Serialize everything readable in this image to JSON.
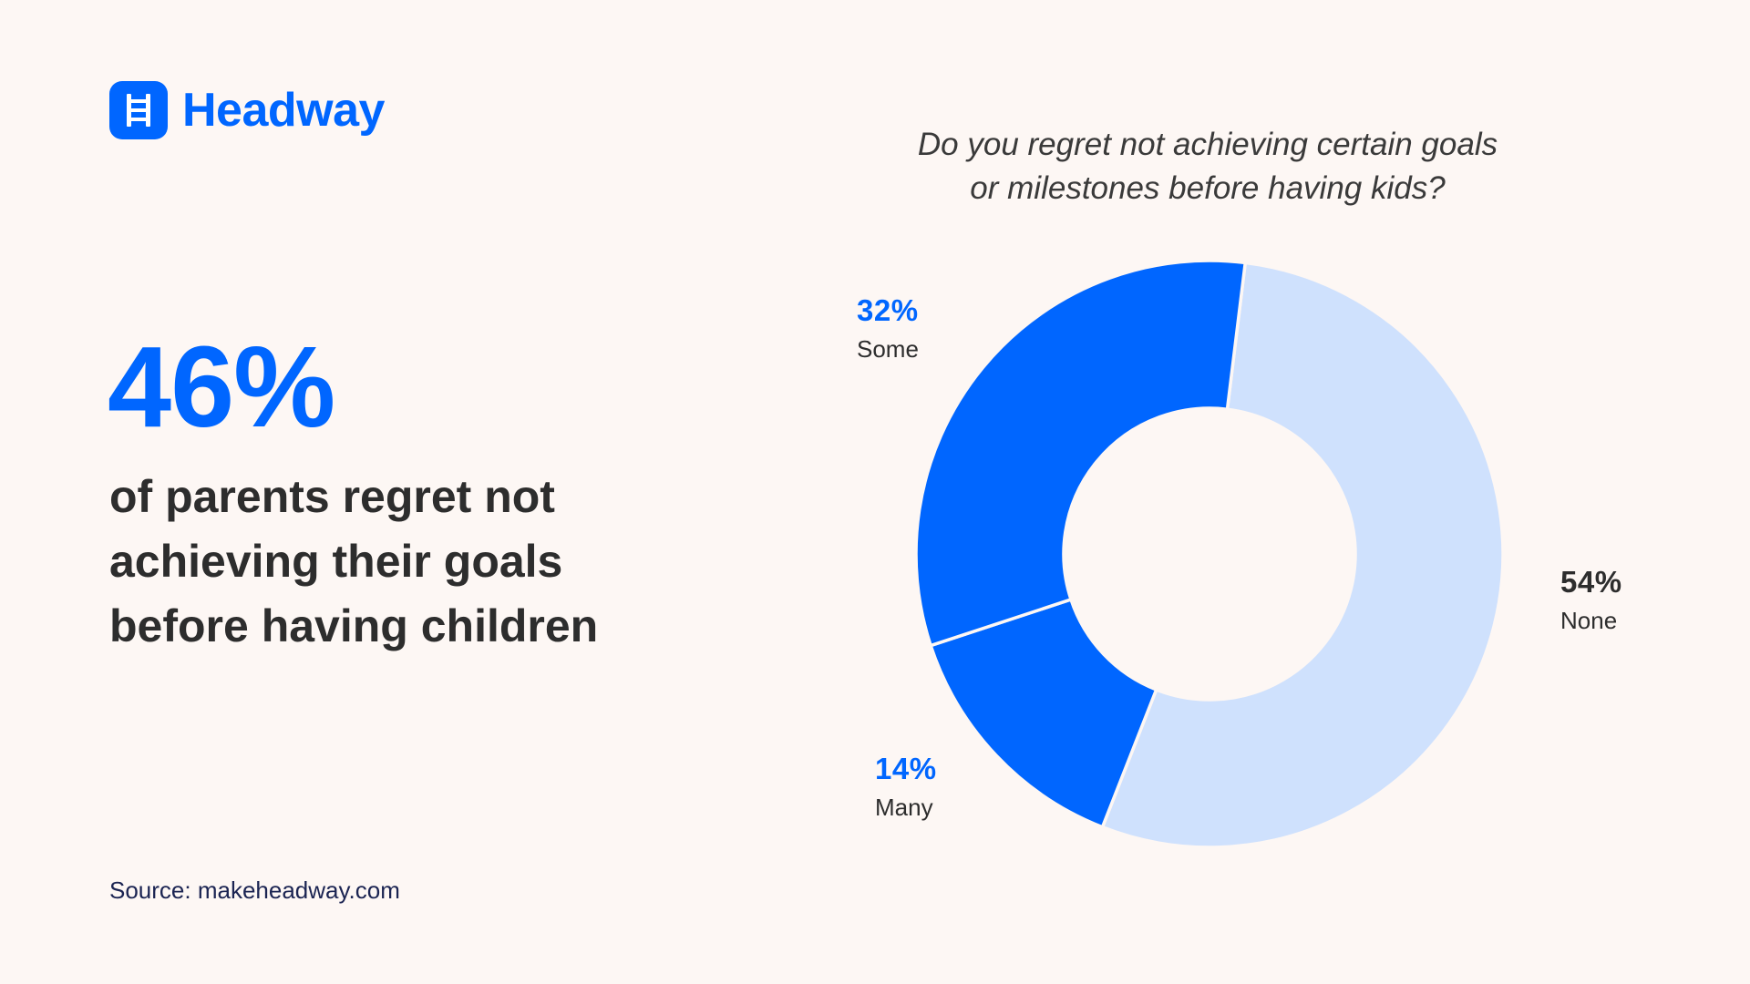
{
  "brand": {
    "name": "Headway",
    "logo_icon": "ladder-icon",
    "color": "#0066ff"
  },
  "headline": {
    "stat": "46%",
    "text_lines": [
      "of parents regret not",
      "achieving their goals",
      "before having children"
    ]
  },
  "source": "Source: makeheadway.com",
  "chart_data": {
    "type": "pie",
    "title": "Do you regret not achieving certain goals or milestones before having kids?",
    "title_lines": [
      "Do you regret not achieving certain goals",
      "or milestones before having kids?"
    ],
    "categories": [
      "None",
      "Many",
      "Some"
    ],
    "values": [
      54,
      14,
      32
    ],
    "value_labels": [
      "54%",
      "14%",
      "32%"
    ],
    "colors": [
      "#cfe1fd",
      "#0066ff",
      "#0066ff"
    ],
    "label_colors": [
      "#2d2d2d",
      "#0066ff",
      "#0066ff"
    ],
    "donut": true
  }
}
